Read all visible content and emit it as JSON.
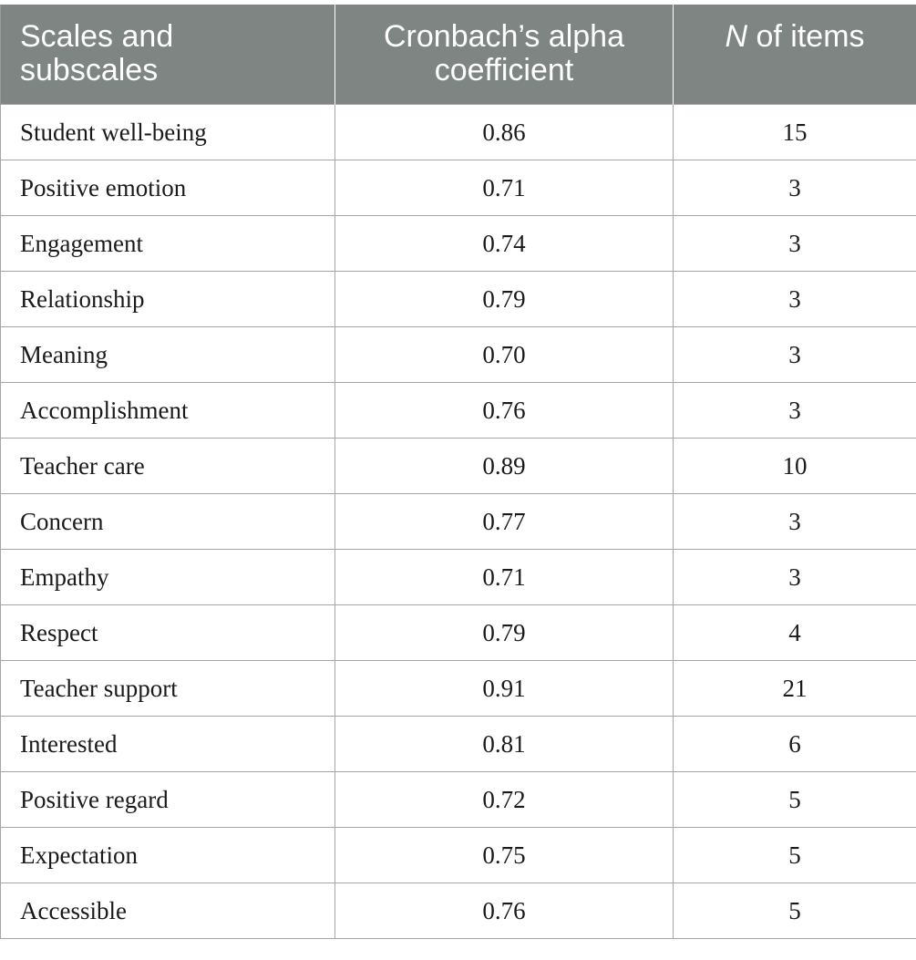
{
  "header": {
    "scales_line1": "Scales and",
    "scales_line2": "subscales",
    "alpha_line1": "Cronbach’s alpha",
    "alpha_line2": "coefficient",
    "n_italic": "N",
    "n_rest": " of items"
  },
  "rows": [
    {
      "name": "Student well-being",
      "alpha": "0.86",
      "n": "15"
    },
    {
      "name": "Positive emotion",
      "alpha": "0.71",
      "n": "3"
    },
    {
      "name": "Engagement",
      "alpha": "0.74",
      "n": "3"
    },
    {
      "name": "Relationship",
      "alpha": "0.79",
      "n": "3"
    },
    {
      "name": "Meaning",
      "alpha": "0.70",
      "n": "3"
    },
    {
      "name": "Accomplishment",
      "alpha": "0.76",
      "n": "3"
    },
    {
      "name": "Teacher care",
      "alpha": "0.89",
      "n": "10"
    },
    {
      "name": "Concern",
      "alpha": "0.77",
      "n": "3"
    },
    {
      "name": "Empathy",
      "alpha": "0.71",
      "n": "3"
    },
    {
      "name": "Respect",
      "alpha": "0.79",
      "n": "4"
    },
    {
      "name": "Teacher support",
      "alpha": "0.91",
      "n": "21"
    },
    {
      "name": "Interested",
      "alpha": "0.81",
      "n": "6"
    },
    {
      "name": "Positive regard",
      "alpha": "0.72",
      "n": "5"
    },
    {
      "name": "Expectation",
      "alpha": "0.75",
      "n": "5"
    },
    {
      "name": "Accessible",
      "alpha": "0.76",
      "n": "5"
    }
  ],
  "colors": {
    "header_bg": "#7f8583",
    "header_text": "#ffffff",
    "grid_line": "#a6a6a6",
    "body_text": "#1a1a1a"
  }
}
